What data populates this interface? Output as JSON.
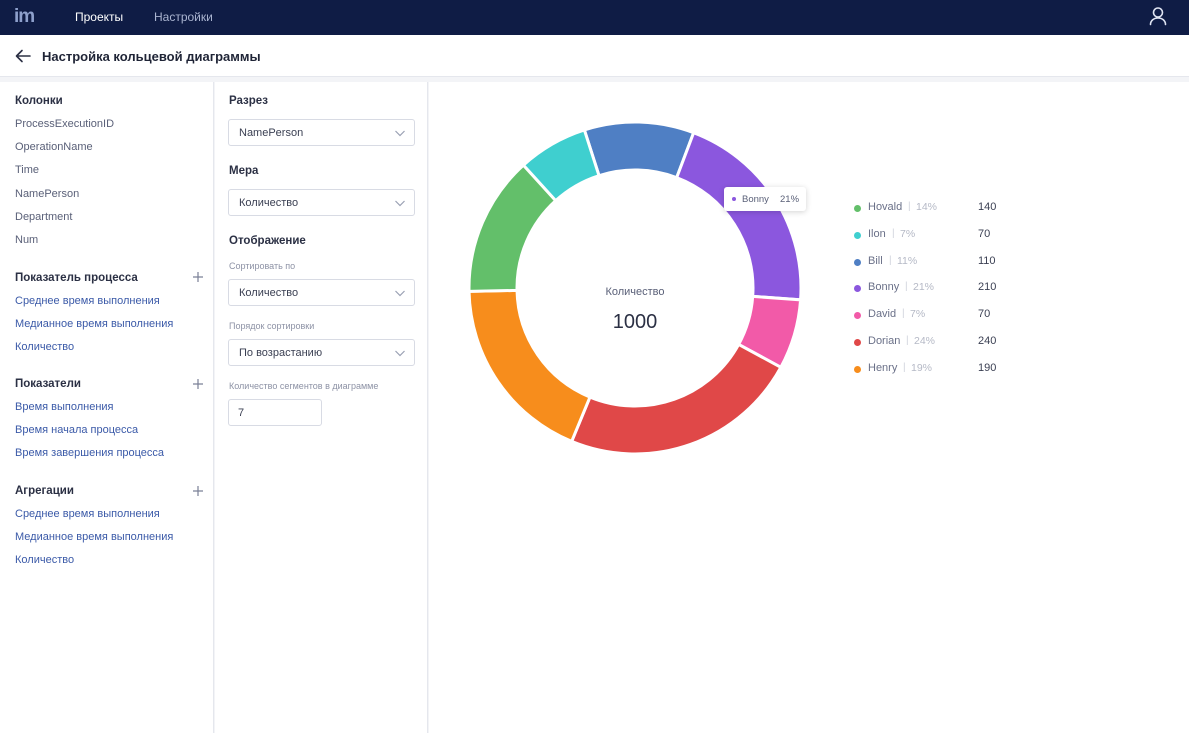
{
  "topbar": {
    "logo": "im",
    "nav": [
      "Проекты",
      "Настройки"
    ]
  },
  "header": {
    "title": "Настройка кольцевой диаграммы"
  },
  "columns": {
    "title": "Колонки",
    "items": [
      "ProcessExecutionID",
      "OperationName",
      "Time",
      "NamePerson",
      "Department",
      "Num"
    ]
  },
  "process_metrics": {
    "title": "Показатель процесса",
    "items": [
      "Среднее время выполнения",
      "Медианное время выполнения",
      "Количество"
    ]
  },
  "metrics": {
    "title": "Показатели",
    "items": [
      "Время выполнения",
      "Время начала процесса",
      "Время завершения процесса"
    ]
  },
  "aggregations": {
    "title": "Агрегации",
    "items": [
      "Среднее время выполнения",
      "Медианное время выполнения",
      "Количество"
    ]
  },
  "settings": {
    "slice_label": "Разрез",
    "slice_value": "NamePerson",
    "measure_label": "Мера",
    "measure_value": "Количество",
    "display_label": "Отображение",
    "sort_by_label": "Сортировать по",
    "sort_by_value": "Количество",
    "sort_order_label": "Порядок сортировки",
    "sort_order_value": "По возрастанию",
    "segments_label": "Количество сегментов в диаграмме",
    "segments_value": "7"
  },
  "chart_data": {
    "type": "pie",
    "center_label": "Количество",
    "center_value": "1000",
    "slices": [
      {
        "name": "Hovald",
        "pct": "14%",
        "value": 140,
        "color": "#63bf6a"
      },
      {
        "name": "Ilon",
        "pct": "7%",
        "value": 70,
        "color": "#3fcfcf"
      },
      {
        "name": "Bill",
        "pct": "11%",
        "value": 110,
        "color": "#4f7fc4"
      },
      {
        "name": "Bonny",
        "pct": "21%",
        "value": 210,
        "color": "#8b57de"
      },
      {
        "name": "David",
        "pct": "7%",
        "value": 70,
        "color": "#f25aa8"
      },
      {
        "name": "Dorian",
        "pct": "24%",
        "value": 240,
        "color": "#e04848"
      },
      {
        "name": "Henry",
        "pct": "19%",
        "value": 190,
        "color": "#f78d1c"
      }
    ],
    "tooltip": {
      "name": "Bonny",
      "pct": "21%"
    }
  }
}
